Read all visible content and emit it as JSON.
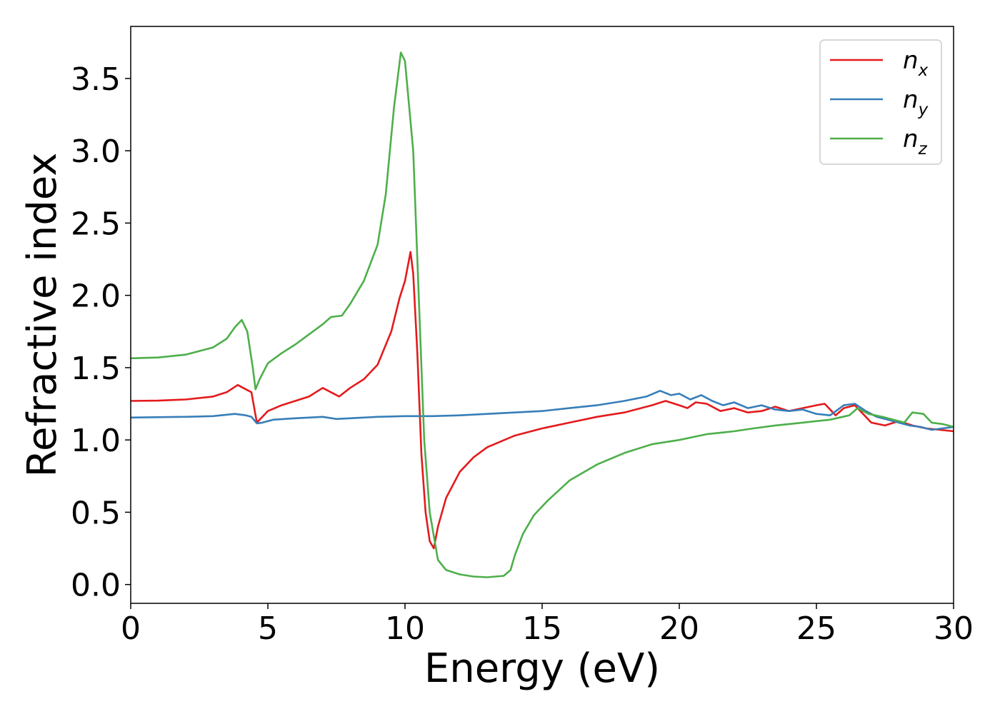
{
  "chart_data": {
    "type": "line",
    "title": "",
    "xlabel": "Energy (eV)",
    "ylabel": "Refractive index",
    "xlim": [
      0,
      30
    ],
    "ylim": [
      -0.13,
      3.86
    ],
    "xticks": [
      0,
      5,
      10,
      15,
      20,
      25,
      30
    ],
    "xtick_labels": [
      "0",
      "5",
      "10",
      "15",
      "20",
      "25",
      "30"
    ],
    "yticks": [
      0.0,
      0.5,
      1.0,
      1.5,
      2.0,
      2.5,
      3.0,
      3.5
    ],
    "ytick_labels": [
      "0.0",
      "0.5",
      "1.0",
      "1.5",
      "2.0",
      "2.5",
      "3.0",
      "3.5"
    ],
    "grid": false,
    "legend_position": "top-right",
    "series": [
      {
        "name": "n_x",
        "legend_base": "n",
        "legend_sub": "x",
        "color": "#e41a1c",
        "points": [
          [
            0,
            1.27
          ],
          [
            1,
            1.272
          ],
          [
            2,
            1.28
          ],
          [
            3,
            1.3
          ],
          [
            3.5,
            1.33
          ],
          [
            3.9,
            1.38
          ],
          [
            4.2,
            1.35
          ],
          [
            4.4,
            1.33
          ],
          [
            4.6,
            1.12
          ],
          [
            4.8,
            1.16
          ],
          [
            5,
            1.2
          ],
          [
            5.5,
            1.24
          ],
          [
            6,
            1.27
          ],
          [
            6.5,
            1.3
          ],
          [
            7,
            1.36
          ],
          [
            7.3,
            1.33
          ],
          [
            7.6,
            1.3
          ],
          [
            8,
            1.36
          ],
          [
            8.5,
            1.42
          ],
          [
            9,
            1.52
          ],
          [
            9.5,
            1.75
          ],
          [
            9.8,
            1.98
          ],
          [
            10,
            2.1
          ],
          [
            10.2,
            2.3
          ],
          [
            10.3,
            2.15
          ],
          [
            10.45,
            1.6
          ],
          [
            10.6,
            0.9
          ],
          [
            10.75,
            0.5
          ],
          [
            10.9,
            0.3
          ],
          [
            11.05,
            0.25
          ],
          [
            11.2,
            0.4
          ],
          [
            11.5,
            0.6
          ],
          [
            12,
            0.78
          ],
          [
            12.5,
            0.88
          ],
          [
            13,
            0.95
          ],
          [
            14,
            1.03
          ],
          [
            15,
            1.08
          ],
          [
            16,
            1.12
          ],
          [
            17,
            1.16
          ],
          [
            18,
            1.19
          ],
          [
            19,
            1.24
          ],
          [
            19.5,
            1.27
          ],
          [
            20,
            1.24
          ],
          [
            20.3,
            1.22
          ],
          [
            20.6,
            1.26
          ],
          [
            21,
            1.25
          ],
          [
            21.5,
            1.2
          ],
          [
            22,
            1.22
          ],
          [
            22.5,
            1.19
          ],
          [
            23,
            1.2
          ],
          [
            23.5,
            1.23
          ],
          [
            24,
            1.2
          ],
          [
            24.5,
            1.22
          ],
          [
            25,
            1.24
          ],
          [
            25.3,
            1.25
          ],
          [
            25.7,
            1.17
          ],
          [
            26,
            1.22
          ],
          [
            26.4,
            1.24
          ],
          [
            26.7,
            1.18
          ],
          [
            27,
            1.12
          ],
          [
            27.5,
            1.1
          ],
          [
            28,
            1.13
          ],
          [
            28.5,
            1.1
          ],
          [
            29,
            1.08
          ],
          [
            29.5,
            1.07
          ],
          [
            30,
            1.06
          ]
        ]
      },
      {
        "name": "n_y",
        "legend_base": "n",
        "legend_sub": "y",
        "color": "#377eb8",
        "points": [
          [
            0,
            1.155
          ],
          [
            2,
            1.16
          ],
          [
            3,
            1.165
          ],
          [
            3.8,
            1.18
          ],
          [
            4.2,
            1.17
          ],
          [
            4.4,
            1.16
          ],
          [
            4.6,
            1.115
          ],
          [
            4.8,
            1.12
          ],
          [
            5.2,
            1.14
          ],
          [
            6,
            1.15
          ],
          [
            7,
            1.16
          ],
          [
            7.5,
            1.145
          ],
          [
            8,
            1.15
          ],
          [
            9,
            1.16
          ],
          [
            10,
            1.165
          ],
          [
            11,
            1.165
          ],
          [
            12,
            1.17
          ],
          [
            13,
            1.18
          ],
          [
            14,
            1.19
          ],
          [
            15,
            1.2
          ],
          [
            16,
            1.22
          ],
          [
            17,
            1.24
          ],
          [
            18,
            1.27
          ],
          [
            18.8,
            1.3
          ],
          [
            19.3,
            1.34
          ],
          [
            19.7,
            1.31
          ],
          [
            20,
            1.32
          ],
          [
            20.4,
            1.28
          ],
          [
            20.8,
            1.31
          ],
          [
            21.2,
            1.27
          ],
          [
            21.6,
            1.24
          ],
          [
            22,
            1.26
          ],
          [
            22.5,
            1.22
          ],
          [
            23,
            1.24
          ],
          [
            23.5,
            1.21
          ],
          [
            24,
            1.2
          ],
          [
            24.5,
            1.21
          ],
          [
            25,
            1.18
          ],
          [
            25.5,
            1.17
          ],
          [
            26,
            1.24
          ],
          [
            26.4,
            1.25
          ],
          [
            26.8,
            1.2
          ],
          [
            27.2,
            1.16
          ],
          [
            27.6,
            1.14
          ],
          [
            28,
            1.12
          ],
          [
            28.4,
            1.1
          ],
          [
            28.8,
            1.09
          ],
          [
            29.2,
            1.07
          ],
          [
            29.6,
            1.08
          ],
          [
            30,
            1.09
          ]
        ]
      },
      {
        "name": "n_z",
        "legend_base": "n",
        "legend_sub": "z",
        "color": "#4daf4a",
        "points": [
          [
            0,
            1.565
          ],
          [
            1,
            1.57
          ],
          [
            2,
            1.59
          ],
          [
            3,
            1.64
          ],
          [
            3.5,
            1.7
          ],
          [
            3.8,
            1.78
          ],
          [
            4.05,
            1.83
          ],
          [
            4.25,
            1.75
          ],
          [
            4.45,
            1.5
          ],
          [
            4.55,
            1.35
          ],
          [
            4.7,
            1.42
          ],
          [
            5,
            1.53
          ],
          [
            5.5,
            1.6
          ],
          [
            6,
            1.66
          ],
          [
            6.5,
            1.73
          ],
          [
            7,
            1.8
          ],
          [
            7.3,
            1.85
          ],
          [
            7.7,
            1.86
          ],
          [
            8,
            1.94
          ],
          [
            8.5,
            2.1
          ],
          [
            9,
            2.35
          ],
          [
            9.3,
            2.7
          ],
          [
            9.6,
            3.3
          ],
          [
            9.85,
            3.68
          ],
          [
            10,
            3.62
          ],
          [
            10.3,
            3.0
          ],
          [
            10.5,
            2.0
          ],
          [
            10.7,
            1.0
          ],
          [
            10.9,
            0.5
          ],
          [
            11.2,
            0.17
          ],
          [
            11.5,
            0.1
          ],
          [
            12,
            0.07
          ],
          [
            12.5,
            0.055
          ],
          [
            13,
            0.05
          ],
          [
            13.6,
            0.06
          ],
          [
            13.85,
            0.1
          ],
          [
            14,
            0.2
          ],
          [
            14.3,
            0.35
          ],
          [
            14.7,
            0.48
          ],
          [
            15.2,
            0.58
          ],
          [
            16,
            0.72
          ],
          [
            17,
            0.83
          ],
          [
            18,
            0.91
          ],
          [
            19,
            0.97
          ],
          [
            20,
            1.0
          ],
          [
            20.5,
            1.02
          ],
          [
            21,
            1.04
          ],
          [
            22,
            1.06
          ],
          [
            22.7,
            1.08
          ],
          [
            23.5,
            1.1
          ],
          [
            24.5,
            1.12
          ],
          [
            25.5,
            1.14
          ],
          [
            26.2,
            1.17
          ],
          [
            26.5,
            1.22
          ],
          [
            26.9,
            1.18
          ],
          [
            27.4,
            1.16
          ],
          [
            27.8,
            1.14
          ],
          [
            28.2,
            1.12
          ],
          [
            28.5,
            1.19
          ],
          [
            28.9,
            1.18
          ],
          [
            29.2,
            1.12
          ],
          [
            29.6,
            1.11
          ],
          [
            30,
            1.09
          ]
        ]
      }
    ]
  }
}
